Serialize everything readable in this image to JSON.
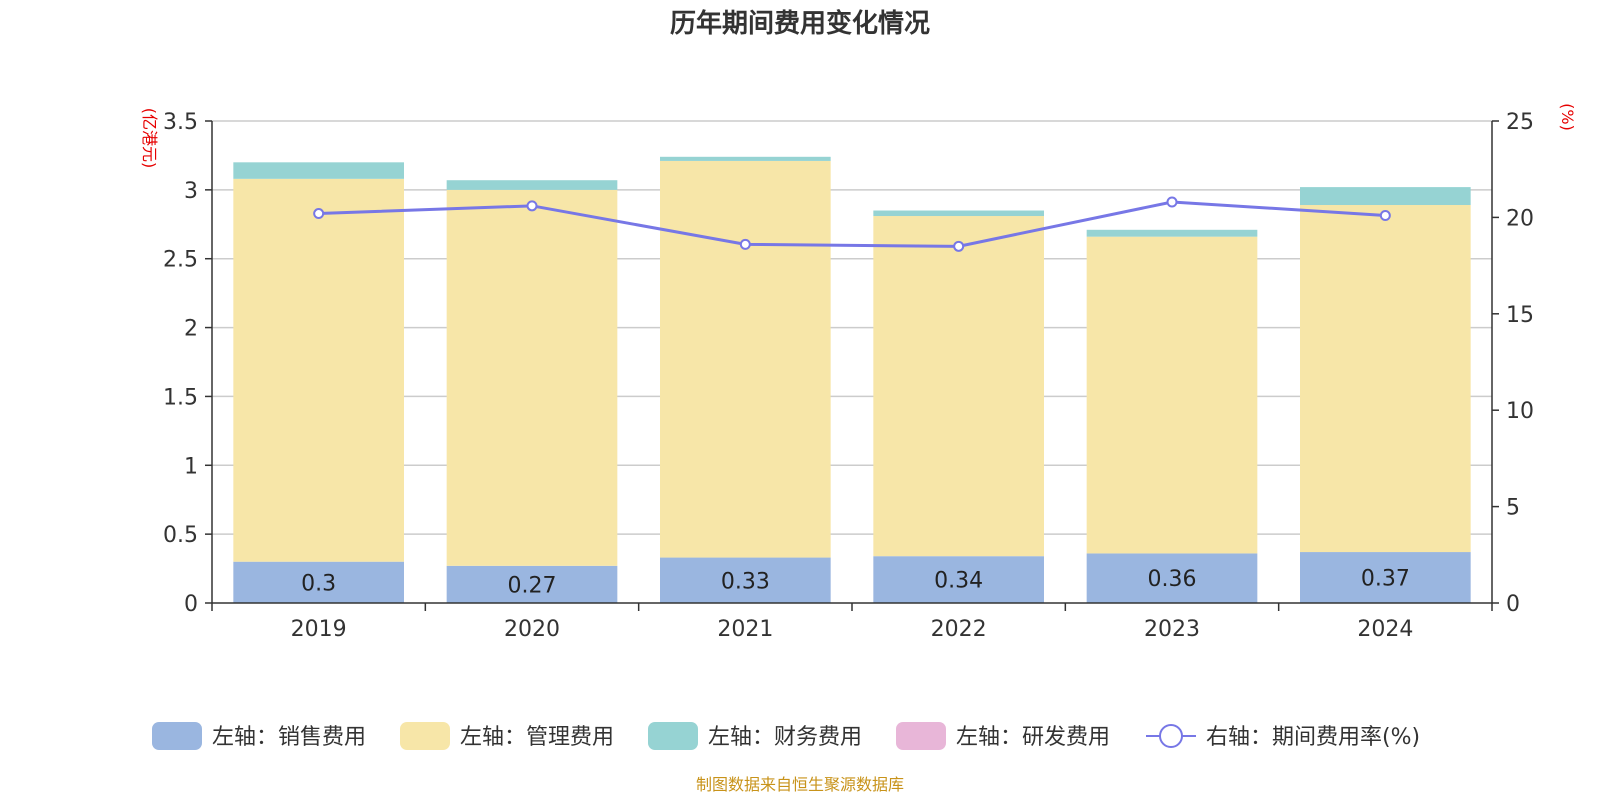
{
  "chart_data": {
    "type": "bar",
    "title": "历年期间费用变化情况",
    "categories": [
      "2019",
      "2020",
      "2021",
      "2022",
      "2023",
      "2024"
    ],
    "y_left": {
      "unit_label": "(亿港元)",
      "ylim": [
        0,
        3.5
      ],
      "ticks": [
        "0",
        "0.5",
        "1",
        "1.5",
        "2",
        "2.5",
        "3",
        "3.5"
      ]
    },
    "y_right": {
      "unit_label": "(%)",
      "ylim": [
        0,
        25
      ],
      "ticks": [
        "0",
        "5",
        "10",
        "15",
        "20",
        "25"
      ]
    },
    "grid": true,
    "legend_position": "bottom",
    "series": [
      {
        "name": "左轴：销售费用",
        "kind": "bar",
        "axis": "left",
        "color": "#9ab6e0",
        "values": [
          0.3,
          0.27,
          0.33,
          0.34,
          0.36,
          0.37
        ],
        "labels": [
          "0.3",
          "0.27",
          "0.33",
          "0.34",
          "0.36",
          "0.37"
        ]
      },
      {
        "name": "左轴：管理费用",
        "kind": "bar",
        "axis": "left",
        "color": "#f7e6a8",
        "values": [
          2.78,
          2.73,
          2.88,
          2.47,
          2.3,
          2.52
        ]
      },
      {
        "name": "左轴：财务费用",
        "kind": "bar",
        "axis": "left",
        "color": "#96d3d3",
        "values": [
          0.12,
          0.07,
          0.03,
          0.04,
          0.05,
          0.13
        ]
      },
      {
        "name": "左轴：研发费用",
        "kind": "bar",
        "axis": "left",
        "color": "#e8b6d8",
        "values": [
          0,
          0,
          0,
          0,
          0,
          0
        ]
      },
      {
        "name": "右轴：期间费用率(%)",
        "kind": "line",
        "axis": "right",
        "color": "#7777e6",
        "values": [
          20.2,
          20.6,
          18.6,
          18.5,
          20.8,
          20.1
        ]
      }
    ]
  },
  "footer": {
    "source": "制图数据来自恒生聚源数据库"
  }
}
